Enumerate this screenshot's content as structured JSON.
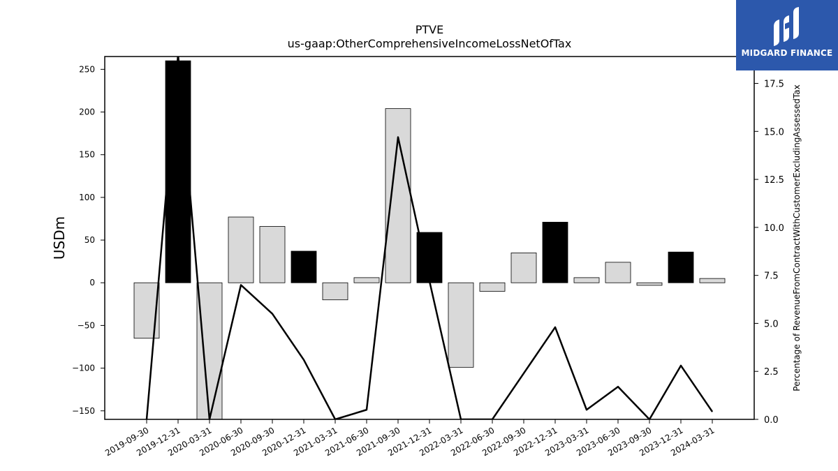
{
  "chart_data": {
    "type": "bar",
    "title": "PTVE",
    "subtitle": "us-gaap:OtherComprehensiveIncomeLossNetOfTax",
    "ylabel": "USDm",
    "ylabel_right": "Percentage of RevenueFromContractWithCustomerExcludingAssessedTax",
    "categories": [
      "2019-09-30",
      "2019-12-31",
      "2020-03-31",
      "2020-06-30",
      "2020-09-30",
      "2020-12-31",
      "2021-03-31",
      "2021-06-30",
      "2021-09-30",
      "2021-12-31",
      "2022-03-31",
      "2022-06-30",
      "2022-09-30",
      "2022-12-31",
      "2023-03-31",
      "2023-06-30",
      "2023-09-30",
      "2023-12-31",
      "2024-03-31"
    ],
    "series": [
      {
        "axis": "left",
        "values": [
          -65,
          260,
          -160,
          77,
          66,
          37,
          -20,
          6,
          204,
          59,
          -99,
          -10,
          35,
          71,
          6,
          24,
          -3,
          36,
          5
        ],
        "colors": [
          "#d9d9d9",
          "#000000",
          "#d9d9d9",
          "#d9d9d9",
          "#d9d9d9",
          "#000000",
          "#d9d9d9",
          "#d9d9d9",
          "#d9d9d9",
          "#000000",
          "#d9d9d9",
          "#d9d9d9",
          "#d9d9d9",
          "#000000",
          "#d9d9d9",
          "#d9d9d9",
          "#d9d9d9",
          "#000000",
          "#d9d9d9"
        ]
      },
      {
        "axis": "right",
        "type": "line",
        "values": [
          0.0,
          19.0,
          0.0,
          7.0,
          5.5,
          3.1,
          0.0,
          0.5,
          14.7,
          7.2,
          0.0,
          0.0,
          2.4,
          4.8,
          0.5,
          1.7,
          0.0,
          2.8,
          0.4
        ]
      }
    ],
    "ylim": [
      -160,
      265
    ],
    "y2lim": [
      0,
      18.9
    ],
    "yticks": [
      -150,
      -100,
      -50,
      0,
      50,
      100,
      150,
      200,
      250
    ],
    "y2ticks": [
      0.0,
      2.5,
      5.0,
      7.5,
      10.0,
      12.5,
      15.0,
      17.5
    ],
    "ytick_labels": [
      "−150",
      "−100",
      "−50",
      "0",
      "50",
      "100",
      "150",
      "200",
      "250"
    ],
    "y2tick_labels": [
      "0.0",
      "2.5",
      "5.0",
      "7.5",
      "10.0",
      "12.5",
      "15.0",
      "17.5"
    ],
    "grid": false,
    "legend": "none"
  },
  "logo": {
    "text": "MIDGARD FINANCE",
    "background": "#2c58ac"
  }
}
